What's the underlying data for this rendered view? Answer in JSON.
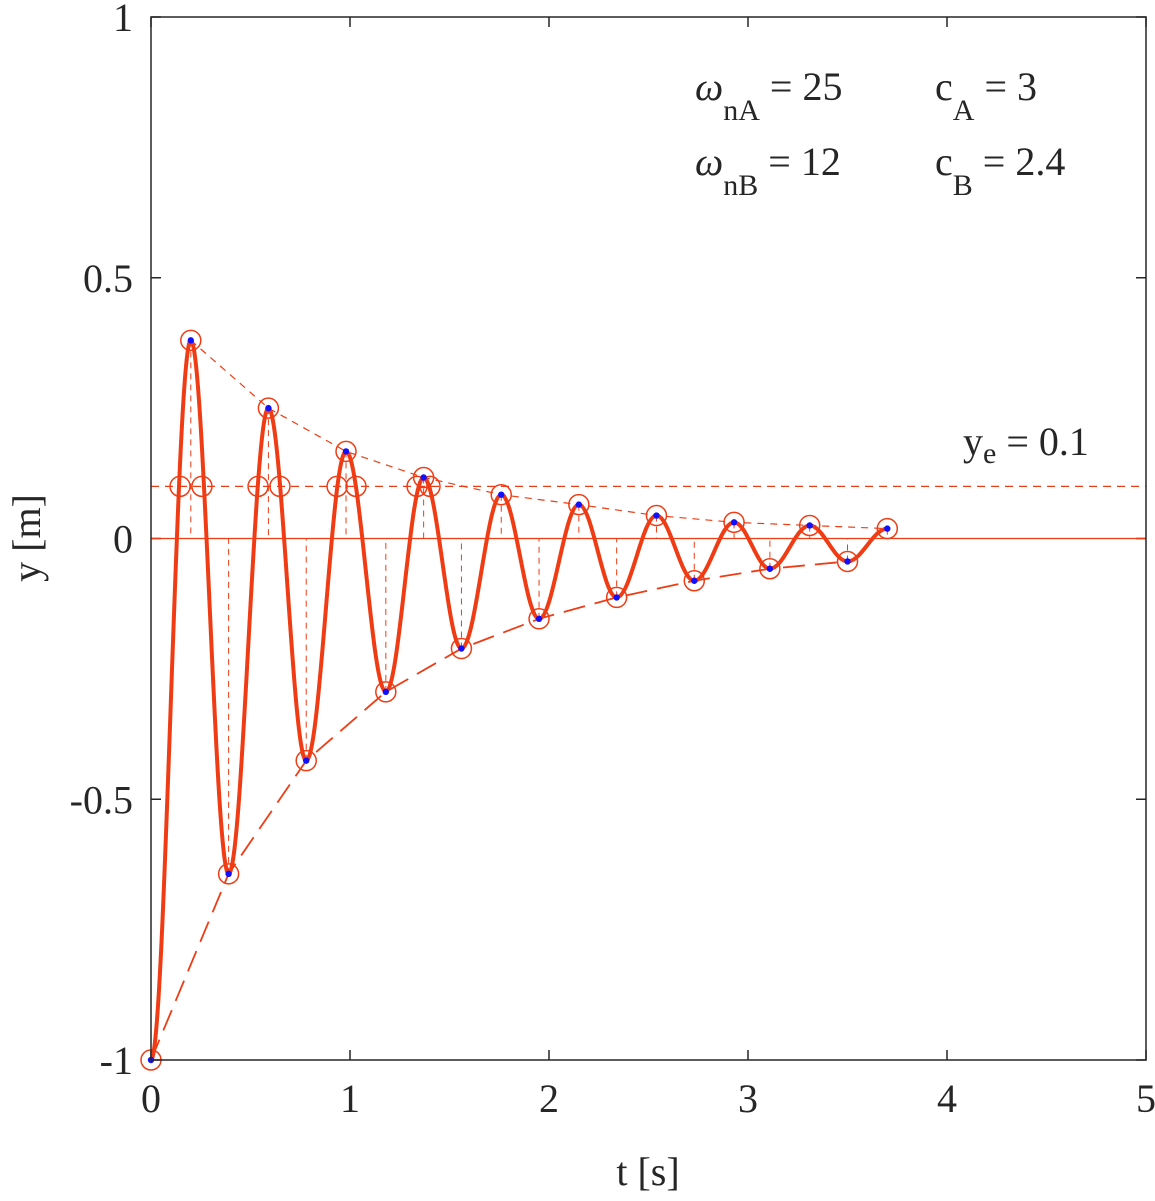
{
  "chart_data": {
    "type": "line",
    "xlabel": "t [s]",
    "ylabel": "y [m]",
    "xlim": [
      0,
      5
    ],
    "ylim": [
      -1,
      1
    ],
    "xticks": [
      0,
      1,
      2,
      3,
      4,
      5
    ],
    "yticks": [
      -1,
      -0.5,
      0,
      0.5,
      1
    ],
    "color": "#f03c14",
    "marker_color": "#1010ff",
    "series": [
      {
        "x": [
          0,
          0.2,
          0.39,
          0.59,
          0.78,
          0.98,
          1.18,
          1.37,
          1.56,
          1.76,
          1.95,
          2.15,
          2.34,
          2.54,
          2.73,
          2.93,
          3.11,
          3.31,
          3.5,
          3.7
        ],
        "values": [
          -1,
          0.38,
          -0.643,
          0.25,
          -0.426,
          0.167,
          -0.294,
          0.117,
          -0.211,
          0.084,
          -0.154,
          0.065,
          -0.113,
          0.044,
          -0.081,
          0.031,
          -0.058,
          0.025,
          -0.044,
          0.019
        ]
      }
    ],
    "equilibrium": {
      "value": 0.1,
      "crossings": [
        0.146,
        0.256,
        0.538,
        0.648,
        0.935,
        1.03,
        1.337,
        1.402
      ]
    },
    "annotations": [
      {
        "main": "ω",
        "sub": "nA",
        "tail": "= 25"
      },
      {
        "main": "c",
        "sub": "A",
        "tail": "= 3"
      },
      {
        "main": "ω",
        "sub": "nB",
        "tail": "= 12"
      },
      {
        "main": "c",
        "sub": "B",
        "tail": "= 2.4"
      },
      {
        "main": "y",
        "sub": "e",
        "tail": "= 0.1"
      }
    ]
  }
}
